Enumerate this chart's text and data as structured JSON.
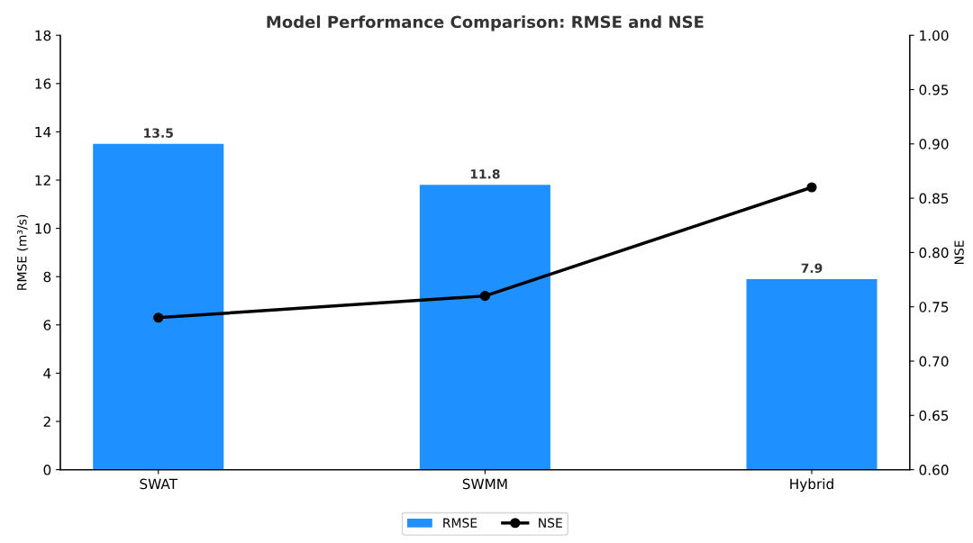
{
  "chart_data": {
    "type": "bar",
    "title": "Model Performance Comparison: RMSE and NSE",
    "categories": [
      "SWAT",
      "SWMM",
      "Hybrid"
    ],
    "ylabel": "RMSE (m³/s)",
    "y2label": "NSE",
    "series": [
      {
        "name": "RMSE",
        "color": "#1e90ff",
        "values": [
          13.5,
          11.8,
          7.9
        ],
        "value_labels": [
          "13.5",
          "11.8",
          "7.9"
        ]
      },
      {
        "name": "NSE",
        "type": "line",
        "axis": "y2",
        "color": "#000000",
        "values": [
          0.74,
          0.76,
          0.86
        ]
      }
    ],
    "ylim": [
      0,
      18
    ],
    "yticks": [
      0,
      2,
      4,
      6,
      8,
      10,
      12,
      14,
      16,
      18
    ],
    "y2lim": [
      0.6,
      1.0
    ],
    "y2ticks": [
      {
        "value": 0.6,
        "label": "0.60"
      },
      {
        "value": 0.65,
        "label": "0.65"
      },
      {
        "value": 0.7,
        "label": "0.70"
      },
      {
        "value": 0.75,
        "label": "0.75"
      },
      {
        "value": 0.8,
        "label": "0.80"
      },
      {
        "value": 0.85,
        "label": "0.85"
      },
      {
        "value": 0.9,
        "label": "0.90"
      },
      {
        "value": 0.95,
        "label": "0.95"
      },
      {
        "value": 1.0,
        "label": "1.00"
      }
    ],
    "marker": "circle",
    "line_style": "solid",
    "grid": false,
    "legend": "bottom"
  }
}
